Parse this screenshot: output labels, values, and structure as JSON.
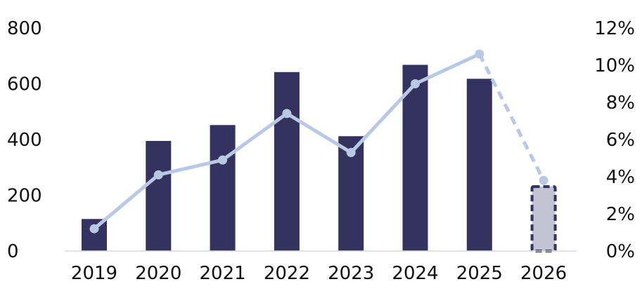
{
  "chart_data": {
    "type": "bar",
    "categories": [
      "2019",
      "2020",
      "2021",
      "2022",
      "2023",
      "2024",
      "2025",
      "2026"
    ],
    "y_left": {
      "ticks": [
        "0",
        "200",
        "400",
        "600",
        "800"
      ],
      "tick_values": [
        0,
        200,
        400,
        600,
        800
      ],
      "ylim": [
        0,
        800
      ]
    },
    "y_right": {
      "ticks": [
        "0%",
        "2%",
        "4%",
        "6%",
        "8%",
        "10%",
        "12%"
      ],
      "tick_values": [
        0,
        2,
        4,
        6,
        8,
        10,
        12
      ],
      "ylim": [
        0,
        12
      ]
    },
    "series": [
      {
        "type": "bar",
        "axis": "left",
        "values": [
          115,
          395,
          452,
          642,
          412,
          668,
          618,
          235
        ],
        "color": "#34325f",
        "projected_from_index": 7,
        "projected_fill": "#c4c3d3",
        "projected_border": "#34325f"
      },
      {
        "type": "line",
        "axis": "right",
        "values": [
          1.2,
          4.1,
          4.9,
          7.4,
          5.3,
          9.0,
          10.6,
          3.8
        ],
        "color": "#b9c8e4",
        "projected_from_index": 6
      }
    ],
    "title": "",
    "xlabel": "",
    "ylabel": "",
    "grid": false,
    "legend": "none"
  }
}
